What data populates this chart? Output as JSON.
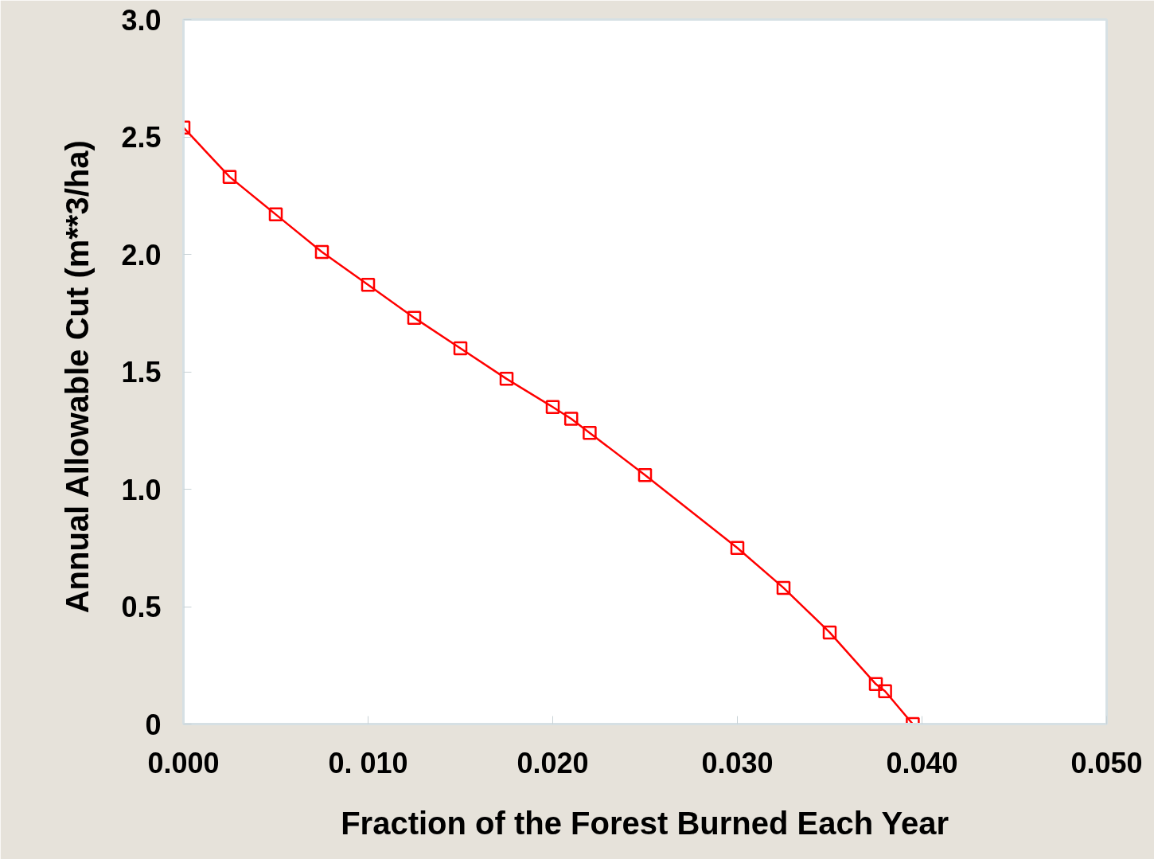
{
  "chart_data": {
    "type": "line",
    "xlabel": "Fraction of the Forest Burned Each Year",
    "ylabel": "Annual Allowable Cut  (m**3/ha)",
    "x": [
      0,
      0.0025,
      0.005,
      0.0075,
      0.01,
      0.0125,
      0.015,
      0.0175,
      0.02,
      0.021,
      0.022,
      0.025,
      0.03,
      0.0325,
      0.035,
      0.0375,
      0.038,
      0.0395
    ],
    "series": [
      {
        "color": "#ff0000",
        "values": [
          2.54,
          2.33,
          2.17,
          2.01,
          1.87,
          1.73,
          1.6,
          1.47,
          1.35,
          1.3,
          1.24,
          1.06,
          0.75,
          0.58,
          0.39,
          0.17,
          0.14,
          0.0
        ]
      }
    ],
    "xlim": [
      0,
      0.05
    ],
    "ylim": [
      0,
      3.0
    ],
    "xticks": [
      {
        "value": 0,
        "label": "0.000"
      },
      {
        "value": 0.01,
        "label": "0. 010"
      },
      {
        "value": 0.02,
        "label": "0.020"
      },
      {
        "value": 0.03,
        "label": "0.030"
      },
      {
        "value": 0.04,
        "label": "0.040"
      },
      {
        "value": 0.05,
        "label": "0.050"
      }
    ],
    "yticks": [
      0,
      0.5,
      {
        "value": 1.0,
        "label": "1.0"
      },
      1.5,
      {
        "value": 2.0,
        "label": "2.0"
      },
      2.5,
      {
        "value": 3.0,
        "label": "3.0"
      }
    ],
    "grid": false,
    "marker": "square",
    "line_style": "solid"
  }
}
